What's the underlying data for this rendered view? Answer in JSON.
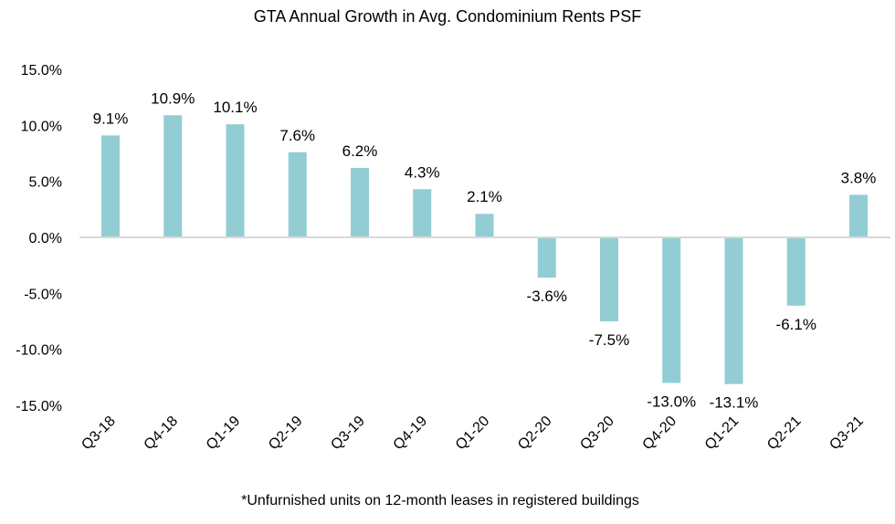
{
  "chart_data": {
    "type": "bar",
    "title": "GTA Annual Growth in Avg. Condominium Rents PSF",
    "footnote": "*Unfurnished units on 12-month leases in registered buildings",
    "categories": [
      "Q3-18",
      "Q4-18",
      "Q1-19",
      "Q2-19",
      "Q3-19",
      "Q4-19",
      "Q1-20",
      "Q2-20",
      "Q3-20",
      "Q4-20",
      "Q1-21",
      "Q2-21",
      "Q3-21"
    ],
    "values": [
      9.1,
      10.9,
      10.1,
      7.6,
      6.2,
      4.3,
      2.1,
      -3.6,
      -7.5,
      -13.0,
      -13.1,
      -6.1,
      3.8
    ],
    "data_labels": [
      "9.1%",
      "10.9%",
      "10.1%",
      "7.6%",
      "6.2%",
      "4.3%",
      "2.1%",
      "-3.6%",
      "-7.5%",
      "-13.0%",
      "-13.1%",
      "-6.1%",
      "3.8%"
    ],
    "yticks": [
      15,
      10,
      5,
      0,
      -5,
      -10,
      -15
    ],
    "ytick_labels": [
      "15.0%",
      "10.0%",
      "5.0%",
      "0.0%",
      "-5.0%",
      "-10.0%",
      "-15.0%"
    ],
    "ylim": [
      -15,
      15
    ],
    "xlabel": "",
    "ylabel": "",
    "grid": false,
    "legend": "none",
    "bar_color": "#92CDD4",
    "axis_color": "#D9D9D9"
  }
}
